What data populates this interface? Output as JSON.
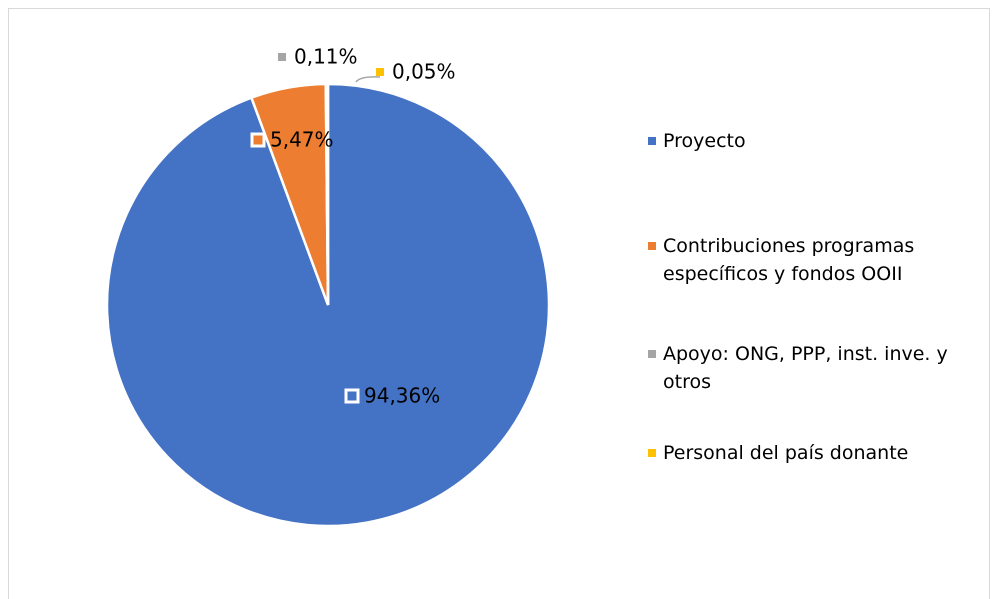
{
  "chart_data": {
    "type": "pie",
    "categories": [
      "Proyecto",
      "Contribuciones programas específicos y fondos OOII",
      "Apoyo: ONG, PPP, inst. inve. y otros",
      "Personal del país donante"
    ],
    "values": [
      94.36,
      5.47,
      0.11,
      0.05
    ],
    "value_labels": [
      "94,36%",
      "5,47%",
      "0,11%",
      "0,05%"
    ],
    "colors": [
      "#4472c4",
      "#ed7d31",
      "#a5a5a5",
      "#ffc000"
    ],
    "legend": "right"
  }
}
